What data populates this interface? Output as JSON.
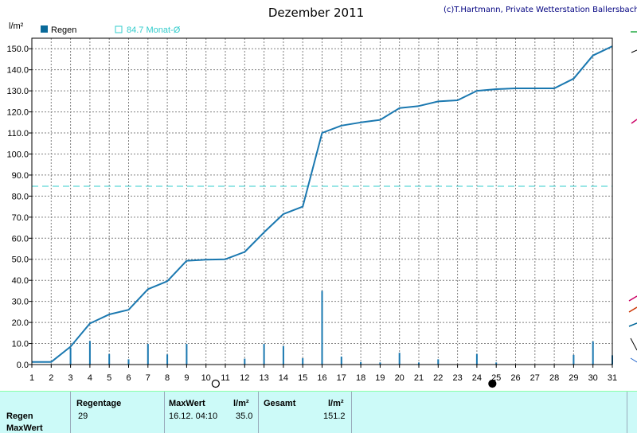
{
  "chart": {
    "title": "Dezember 2011",
    "copyright": "(c)T.Hartmann, Private Wetterstation Ballersbach",
    "y_unit": "l/m²",
    "legend": [
      {
        "label": "Regen",
        "color": "#0a6a9a"
      },
      {
        "label": "84.7 Monat-Ø",
        "color": "#33cccc"
      }
    ],
    "colors": {
      "cumulative": "#1a78b0",
      "bars": "#1a78b0",
      "average": "#33cccc",
      "grid": "#808080"
    }
  },
  "chart_data": {
    "type": "bar+line",
    "title": "Dezember 2011",
    "ylabel": "l/m²",
    "xlabel": "",
    "x": [
      1,
      2,
      3,
      4,
      5,
      6,
      7,
      8,
      9,
      10,
      11,
      12,
      13,
      14,
      15,
      16,
      17,
      18,
      19,
      20,
      21,
      22,
      23,
      24,
      25,
      26,
      27,
      28,
      29,
      30,
      31
    ],
    "ylim": [
      0,
      155
    ],
    "yticks": [
      0.0,
      10.0,
      20.0,
      30.0,
      40.0,
      50.0,
      60.0,
      70.0,
      80.0,
      90.0,
      100.0,
      110.0,
      120.0,
      130.0,
      140.0,
      150.0
    ],
    "grid": true,
    "average": 84.7,
    "series": [
      {
        "name": "Regen",
        "kind": "cumulative-line",
        "values": [
          1.2,
          1.2,
          8.5,
          19.5,
          23.8,
          26.0,
          35.8,
          39.6,
          49.3,
          49.8,
          50.0,
          53.5,
          62.8,
          71.5,
          75.0,
          110.0,
          113.5,
          115.0,
          116.2,
          121.8,
          122.8,
          125.0,
          125.5,
          130.0,
          130.8,
          131.2,
          131.2,
          131.2,
          135.8,
          146.8,
          151.2
        ]
      },
      {
        "name": "",
        "kind": "daily-bars",
        "values": [
          0,
          0,
          8.0,
          11.2,
          5.0,
          2.5,
          9.8,
          4.8,
          9.8,
          0,
          0,
          2.8,
          9.8,
          8.8,
          3.0,
          35.0,
          3.8,
          1.2,
          1.0,
          5.6,
          1.0,
          2.5,
          0,
          5.0,
          1.0,
          0,
          0,
          0,
          4.6,
          11.0,
          4.4
        ]
      }
    ],
    "markers": [
      {
        "day": 10.5,
        "phase": "new moon",
        "icon": "moon-outline-icon"
      },
      {
        "day": 24.8,
        "phase": "full moon",
        "icon": "moon-filled-icon"
      }
    ]
  },
  "stats": {
    "row_label_1": "Regen",
    "row_label_2": "MaxWert",
    "rain_days_header": "Regentage",
    "rain_days_value": "29",
    "max_header": "MaxWert",
    "max_unit": "l/m²",
    "max_datetime": "16.12.  04:10",
    "max_value": "35.0",
    "total_header": "Gesamt",
    "total_unit": "l/m²",
    "total_value": "151.2"
  }
}
